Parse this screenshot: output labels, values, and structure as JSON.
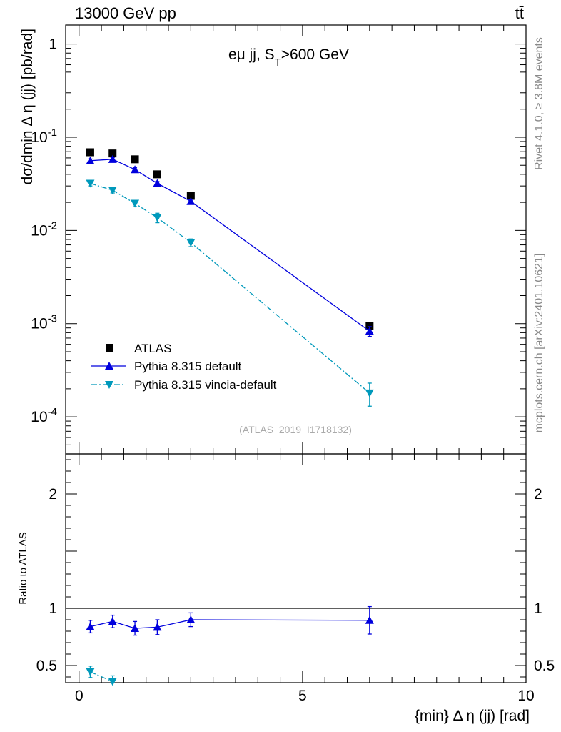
{
  "header": {
    "energy_label": "13000 GeV pp",
    "process_label": "tt̄",
    "selection_label_main": "eμ jj, S",
    "selection_label_sub": "T",
    "selection_label_tail": ">600 GeV",
    "analysis_id": "(ATLAS_2019_I1718132)"
  },
  "side_notes": {
    "rivet": "Rivet 4.1.0, ≥ 3.8M events",
    "mcplots": "mcplots.cern.ch [arXiv:2401.10621]"
  },
  "colors": {
    "data": "#000000",
    "pythia_default": "#0000dd",
    "pythia_vincia": "#0099bb"
  },
  "chart_data": [
    {
      "type": "scatter",
      "panel": "main",
      "yscale": "log",
      "ylabel": "dσ/dmin Δ η (jj) [pb/rad]",
      "xlim": [
        -0.3,
        10.0
      ],
      "ylim": [
        4e-05,
        1.6
      ],
      "y_tick_labels": [
        {
          "base": "10",
          "exp": "-4",
          "value": 0.0001
        },
        {
          "base": "10",
          "exp": "-3",
          "value": 0.001
        },
        {
          "base": "10",
          "exp": "-2",
          "value": 0.01
        },
        {
          "base": "10",
          "exp": "-1",
          "value": 0.1
        },
        {
          "base": "1",
          "exp": "",
          "value": 1
        }
      ],
      "legend": [
        "ATLAS",
        "Pythia 8.315 default",
        "Pythia 8.315 vincia-default"
      ],
      "legend_position": "lower-left",
      "series": [
        {
          "name": "ATLAS",
          "marker": "square",
          "x": [
            0.25,
            0.75,
            1.25,
            1.75,
            2.5,
            6.5
          ],
          "y": [
            0.069,
            0.067,
            0.058,
            0.04,
            0.0235,
            0.00095
          ],
          "err": [
            0.003,
            0.003,
            0.002,
            0.002,
            0.001,
            5e-05
          ]
        },
        {
          "name": "Pythia 8.315 default",
          "marker": "triangle-up",
          "line": "solid",
          "x": [
            0.25,
            0.75,
            1.25,
            1.75,
            2.5,
            6.5
          ],
          "y": [
            0.056,
            0.058,
            0.045,
            0.032,
            0.0205,
            0.00083
          ],
          "err": [
            0.0025,
            0.0025,
            0.002,
            0.0015,
            0.001,
            0.0001
          ]
        },
        {
          "name": "Pythia 8.315 vincia-default",
          "marker": "triangle-down",
          "line": "dashdot",
          "x": [
            0.25,
            0.75,
            1.25,
            1.75,
            2.5,
            6.5
          ],
          "y": [
            0.032,
            0.027,
            0.0195,
            0.0137,
            0.0074,
            0.00018
          ],
          "err": [
            0.002,
            0.0018,
            0.0015,
            0.0016,
            0.0007,
            5e-05
          ]
        }
      ]
    },
    {
      "type": "scatter",
      "panel": "ratio",
      "ylabel": "Ratio to ATLAS",
      "xlabel": "{min} Δ η (jj) [rad]",
      "xlim": [
        -0.3,
        10.0
      ],
      "ylim": [
        0.35,
        2.35
      ],
      "x_ticks": [
        0,
        5,
        10
      ],
      "x_tick_labels": [
        "0",
        "5",
        "10"
      ],
      "y_ticks": [
        0.5,
        1,
        2
      ],
      "y_tick_labels": [
        "0.5",
        "1",
        "2"
      ],
      "reference_line": 1,
      "series": [
        {
          "name": "Pythia 8.315 default",
          "marker": "triangle-up",
          "line": "solid",
          "x": [
            0.25,
            0.75,
            1.25,
            1.75,
            2.5,
            6.5
          ],
          "y": [
            0.84,
            0.885,
            0.825,
            0.835,
            0.9,
            0.895
          ],
          "err": [
            0.055,
            0.055,
            0.06,
            0.065,
            0.06,
            0.12
          ]
        },
        {
          "name": "Pythia 8.315 vincia-default",
          "marker": "triangle-down",
          "line": "dashdot",
          "x": [
            0.25,
            0.75
          ],
          "y": [
            0.445,
            0.36
          ],
          "err": [
            0.05,
            0.05
          ]
        }
      ]
    }
  ]
}
